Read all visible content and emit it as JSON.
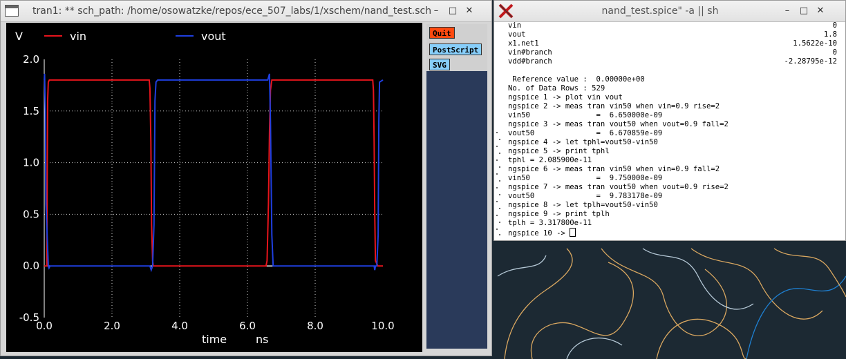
{
  "plot_window": {
    "title": "tran1: ** sch_path: /home/osowatzke/repos/ece_507_labs/1/xschem/nand_test.sch",
    "controls": {
      "minimize": "–",
      "maximize": "□",
      "close": "✕"
    },
    "side_buttons": [
      {
        "label": "Quit",
        "color": "#ff4a10"
      },
      {
        "label": "PostScript",
        "color": "#87cefa"
      },
      {
        "label": "SVG",
        "color": "#87cefa"
      }
    ]
  },
  "chart_data": {
    "type": "line",
    "ylabel": "V",
    "xlabel": "time",
    "xunit": "ns",
    "xlim": [
      0,
      10
    ],
    "ylim": [
      -0.5,
      2.0
    ],
    "xticks": [
      "0.0",
      "2.0",
      "4.0",
      "6.0",
      "8.0",
      "10.0"
    ],
    "yticks": [
      "2.0",
      "1.5",
      "1.0",
      "0.5",
      "0.0",
      "-0.5"
    ],
    "grid": true,
    "legend": "top",
    "series": [
      {
        "name": "vin",
        "color": "#e8141c",
        "x": [
          0.0,
          0.08,
          0.09,
          0.1,
          0.12,
          0.15,
          3.1,
          3.12,
          3.15,
          3.17,
          3.2,
          3.22,
          6.55,
          6.58,
          6.62,
          6.65,
          6.68,
          6.72,
          9.7,
          9.72,
          9.74,
          9.76,
          9.78,
          9.85,
          10.0
        ],
        "y": [
          0.0,
          0.0,
          1.0,
          1.6,
          1.78,
          1.8,
          1.8,
          1.72,
          1.2,
          0.4,
          0.05,
          0.0,
          0.0,
          0.05,
          0.6,
          1.3,
          1.7,
          1.8,
          1.8,
          1.7,
          1.2,
          0.5,
          0.05,
          0.0,
          0.0
        ]
      },
      {
        "name": "vout",
        "color": "#1f3fe0",
        "x": [
          0.0,
          0.01,
          0.03,
          0.05,
          0.12,
          0.14,
          0.17,
          0.2,
          3.12,
          3.16,
          3.2,
          3.24,
          3.27,
          3.3,
          3.35,
          6.6,
          6.65,
          6.68,
          6.72,
          6.76,
          6.8,
          9.74,
          9.76,
          9.78,
          9.82,
          9.86,
          9.88,
          9.9,
          10.0
        ],
        "y": [
          1.8,
          1.86,
          1.5,
          0.6,
          0.0,
          -0.02,
          0.0,
          0.0,
          0.0,
          -0.04,
          0.0,
          0.4,
          1.6,
          1.78,
          1.8,
          1.8,
          1.86,
          1.4,
          0.3,
          0.0,
          0.0,
          0.0,
          -0.04,
          0.0,
          0.0,
          0.3,
          1.4,
          1.78,
          1.8
        ]
      }
    ]
  },
  "terminal_window": {
    "title": "nand_test.spice\" -a || sh",
    "controls": {
      "minimize": "–",
      "maximize": "□",
      "close": "✕"
    },
    "lines": [
      {
        "left": "vin",
        "right": "0"
      },
      {
        "left": "vout",
        "right": "1.8"
      },
      {
        "left": "x1.net1",
        "right": "1.5622e-10"
      },
      {
        "left": "vin#branch",
        "right": "0"
      },
      {
        "left": "vdd#branch",
        "right": "-2.28795e-12"
      },
      {
        "left": "",
        "right": ""
      },
      {
        "left": " Reference value :  0.00000e+00",
        "right": ""
      },
      {
        "left": "No. of Data Rows : 529",
        "right": ""
      },
      {
        "left": "ngspice 1 -> plot vin vout",
        "right": ""
      },
      {
        "left": "ngspice 2 -> meas tran vin50 when vin=0.9 rise=2",
        "right": ""
      },
      {
        "left": "vin50               =  6.650000e-09",
        "right": ""
      },
      {
        "left": "ngspice 3 -> meas tran vout50 when vout=0.9 fall=2",
        "right": ""
      },
      {
        "left": "vout50              =  6.670859e-09",
        "right": ""
      },
      {
        "left": "ngspice 4 -> let tphl=vout50-vin50",
        "right": ""
      },
      {
        "left": "ngspice 5 -> print tphl",
        "right": ""
      },
      {
        "left": "tphl = 2.085900e-11",
        "right": ""
      },
      {
        "left": "ngspice 6 -> meas tran vin50 when vin=0.9 fall=2",
        "right": ""
      },
      {
        "left": "vin50               =  9.750000e-09",
        "right": ""
      },
      {
        "left": "ngspice 7 -> meas tran vout50 when vout=0.9 rise=2",
        "right": ""
      },
      {
        "left": "vout50              =  9.783178e-09",
        "right": ""
      },
      {
        "left": "ngspice 8 -> let tplh=vout50-vin50",
        "right": ""
      },
      {
        "left": "ngspice 9 -> print tplh",
        "right": ""
      },
      {
        "left": "tplh = 3.317800e-11",
        "right": ""
      }
    ],
    "prompt": "ngspice 10 -> "
  }
}
